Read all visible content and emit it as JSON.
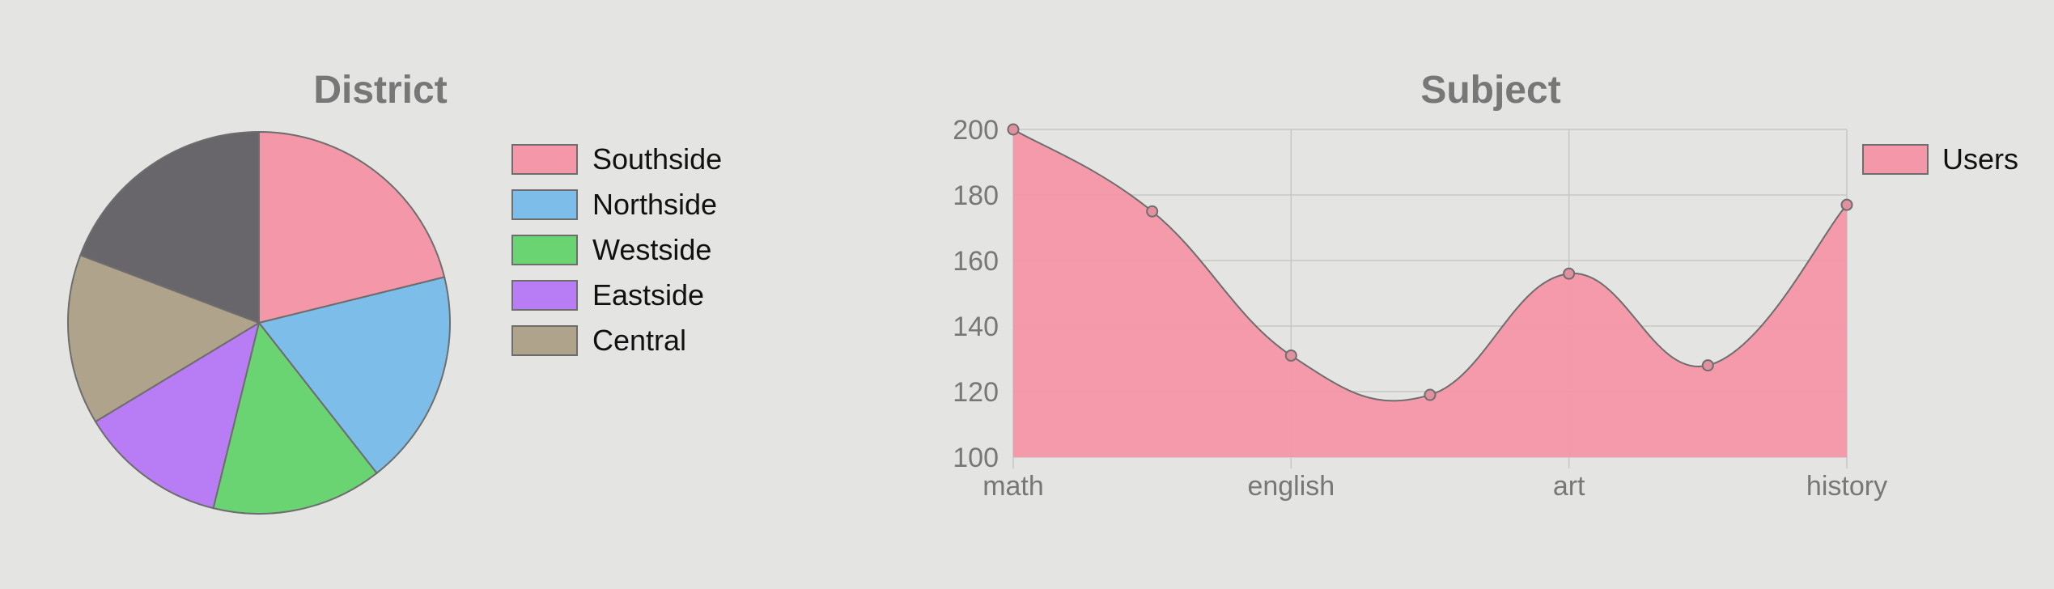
{
  "chart_data": [
    {
      "type": "pie",
      "title": "District",
      "legend_position": "right",
      "categories": [
        "Southside",
        "Northside",
        "Westside",
        "Eastside",
        "Central",
        ""
      ],
      "values": [
        22,
        19,
        15,
        13,
        15,
        20
      ],
      "colors": [
        "#f497a9",
        "#7dbde9",
        "#6ad472",
        "#b87cf4",
        "#b0a38c",
        "#69666b"
      ]
    },
    {
      "type": "area",
      "title": "Subject",
      "legend_position": "top-right",
      "x_tick_labels": [
        "math",
        "english",
        "art",
        "history"
      ],
      "ylim": [
        100,
        200
      ],
      "y_ticks": [
        100,
        120,
        140,
        160,
        180,
        200
      ],
      "grid": true,
      "series": [
        {
          "name": "Users",
          "color": "#f497a9",
          "x": [
            0,
            0.5,
            1,
            1.5,
            2,
            2.5,
            3
          ],
          "values": [
            200,
            175,
            131,
            119,
            156,
            128,
            177
          ]
        }
      ]
    }
  ]
}
